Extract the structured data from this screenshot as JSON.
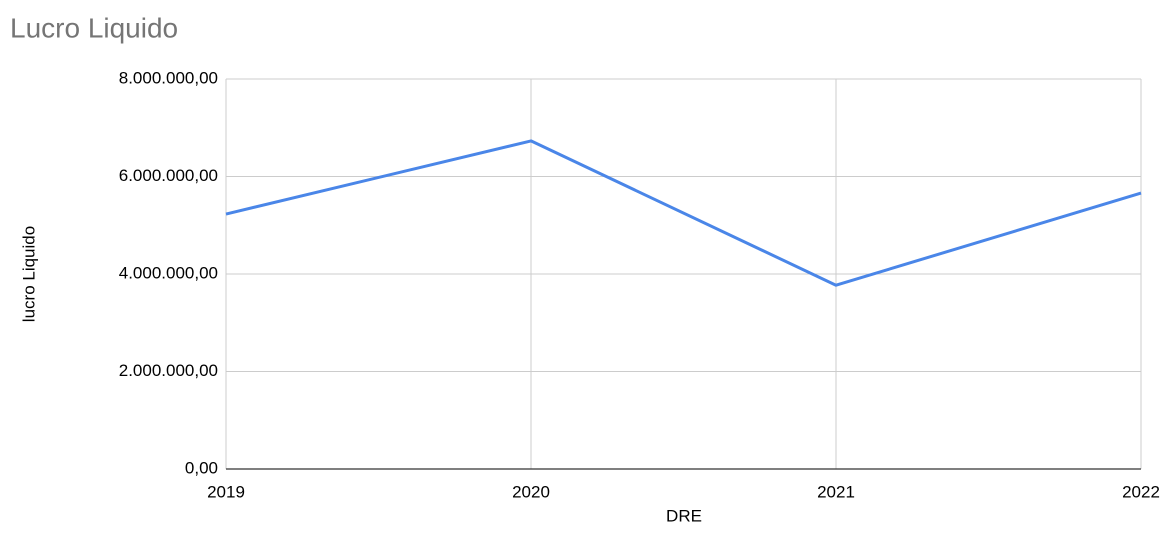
{
  "chart_data": {
    "type": "line",
    "title": "Lucro Liquido",
    "x_label": "DRE",
    "y_label": "lucro Liquido",
    "x": [
      2019,
      2020,
      2021,
      2022
    ],
    "series": [
      {
        "name": "lucro Liquido",
        "color": "#4a86e8",
        "values": [
          5230000,
          6730000,
          3770000,
          5660000
        ]
      }
    ],
    "xlim": [
      2019,
      2022
    ],
    "xticks": [
      2019,
      2020,
      2021,
      2022
    ],
    "ylim": [
      0,
      8000000
    ],
    "yticks": [
      {
        "value": 0,
        "label": "0,00"
      },
      {
        "value": 2000000,
        "label": "2.000.000,00"
      },
      {
        "value": 4000000,
        "label": "4.000.000,00"
      },
      {
        "value": 6000000,
        "label": "6.000.000,00"
      },
      {
        "value": 8000000,
        "label": "8.000.000,00"
      }
    ],
    "grid": true
  }
}
